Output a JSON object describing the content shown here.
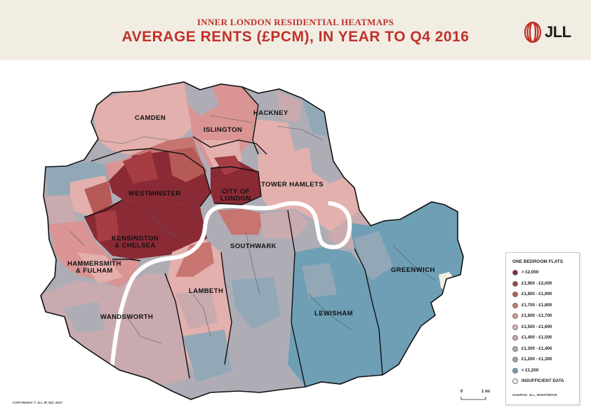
{
  "header": {
    "supertitle": "INNER LONDON RESIDENTIAL HEATMAPS",
    "title": "AVERAGE RENTS (£PCM), IN YEAR TO Q4 2016",
    "logo_text": "JLL",
    "logo_color": "#c0312b"
  },
  "map": {
    "river_color": "#ffffff",
    "border_color": "#111111",
    "district_line_color": "#5a5a5a",
    "boroughs": [
      {
        "key": "camden",
        "name": "CAMDEN"
      },
      {
        "key": "islington",
        "name": "ISLINGTON"
      },
      {
        "key": "hackney",
        "name": "HACKNEY"
      },
      {
        "key": "westminster",
        "name": "WESTMINSTER"
      },
      {
        "key": "city",
        "name": "CITY OF\nLONDON"
      },
      {
        "key": "tower_hamlets",
        "name": "TOWER HAMLETS"
      },
      {
        "key": "kensington",
        "name": "KENSINGTON\n& CHELSEA"
      },
      {
        "key": "hammersmith",
        "name": "HAMMERSMITH\n& FULHAM"
      },
      {
        "key": "southwark",
        "name": "SOUTHWARK"
      },
      {
        "key": "greenwich",
        "name": "GREENWICH"
      },
      {
        "key": "lambeth",
        "name": "LAMBETH"
      },
      {
        "key": "wandsworth",
        "name": "WANDSWORTH"
      },
      {
        "key": "lewisham",
        "name": "LEWISHAM"
      }
    ]
  },
  "legend": {
    "title": "ONE BEDROOM FLATS",
    "items": [
      {
        "label": "> £2,000",
        "color": "#8a2a35"
      },
      {
        "label": "£1,900 - £2,000",
        "color": "#a53d43"
      },
      {
        "label": "£1,800 - £1,900",
        "color": "#b65a58"
      },
      {
        "label": "£1,700 - £1,800",
        "color": "#c87572"
      },
      {
        "label": "£1,600 - £1,700",
        "color": "#d99493"
      },
      {
        "label": "£1,500 - £1,600",
        "color": "#e3b0ad"
      },
      {
        "label": "£1,400 - £1,500",
        "color": "#c8aaaf"
      },
      {
        "label": "£1,300 - £1,400",
        "color": "#aeadb6"
      },
      {
        "label": "£1,200 - £1,300",
        "color": "#93a8b7"
      },
      {
        "label": "< £1,200",
        "color": "#6e9fb5"
      },
      {
        "label": "INSUFFICIENT DATA",
        "color": "#f4efe3"
      }
    ],
    "source": "SOURCE: JLL, RIGHTMOVE"
  },
  "scale": {
    "start_label": "0",
    "end_label": "1 mi"
  },
  "copyright": "COPYRIGHT © JLL IP, INC 2017"
}
